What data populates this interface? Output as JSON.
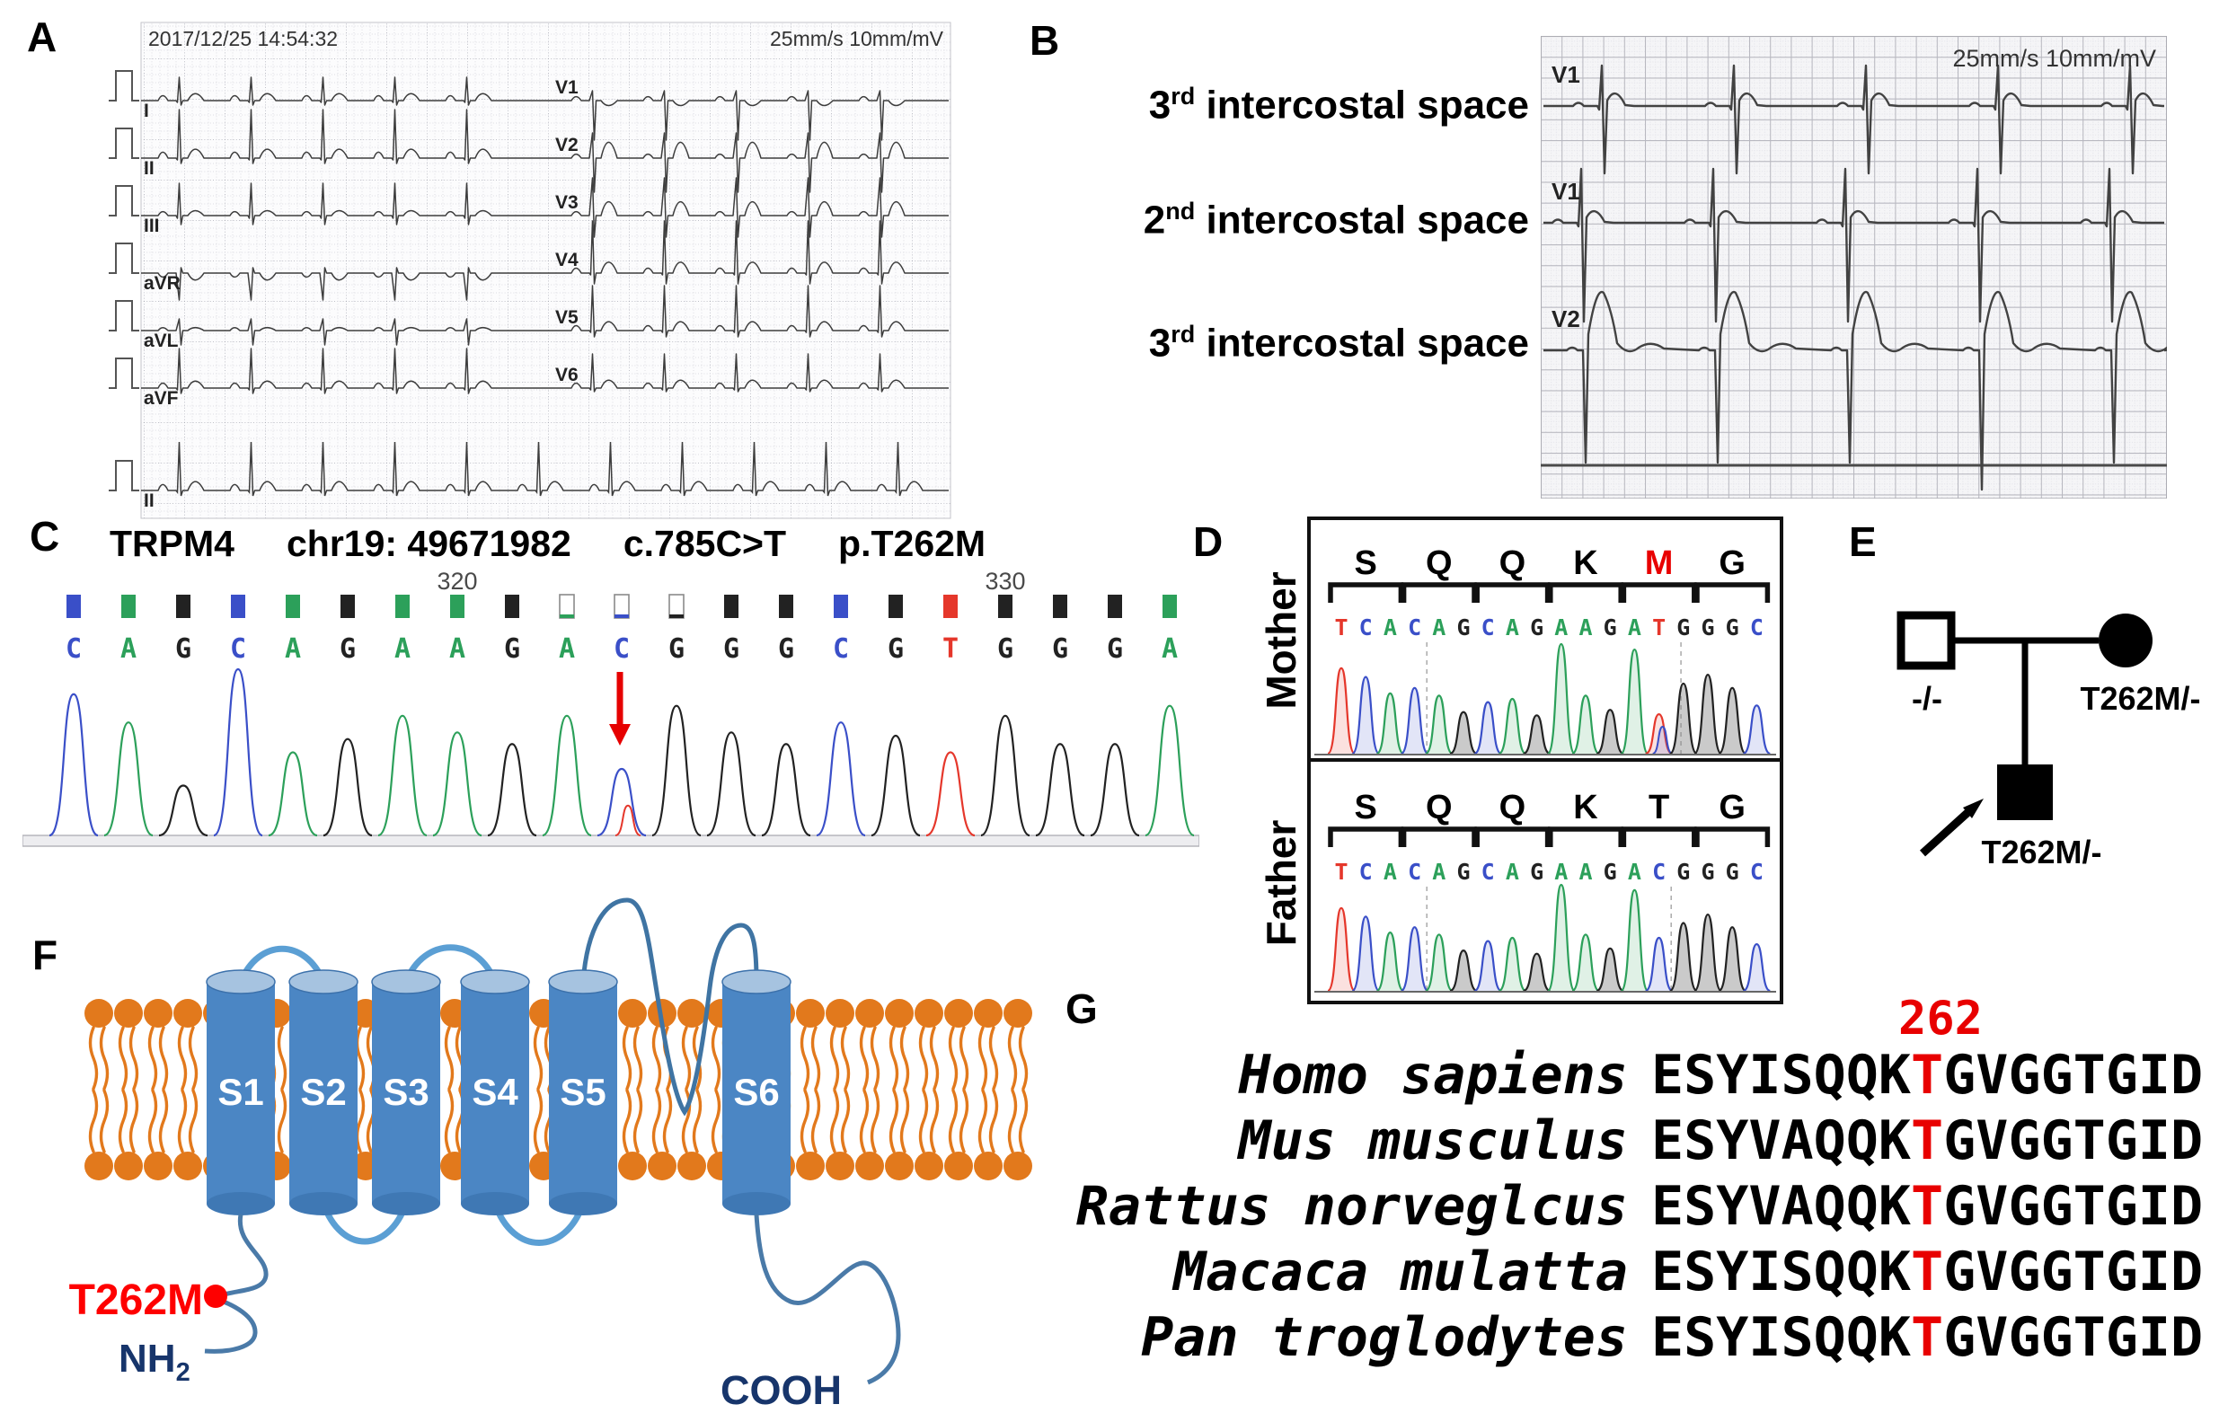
{
  "colors": {
    "base_A": "#2ca05a",
    "base_C": "#3a4fc8",
    "base_G": "#222222",
    "base_T": "#e5372b",
    "accent_red": "#fe0000",
    "lipid_orange": "#e2791c",
    "cylinder_blue": "#4b86c4",
    "loop_light": "#5b9fd4",
    "loop_dark": "#3f74a3",
    "navy": "#17356b"
  },
  "panel_a": {
    "label": "A",
    "timestamp": "2017/12/25 14:54:32",
    "calibration": "25mm/s 10mm/mV",
    "limb_leads": [
      "I",
      "II",
      "III",
      "aVR",
      "aVL",
      "aVF"
    ],
    "chest_leads": [
      "V1",
      "V2",
      "V3",
      "V4",
      "V5",
      "V6"
    ],
    "rhythm_lead": "II"
  },
  "panel_b": {
    "label": "B",
    "calibration": "25mm/s 10mm/mV",
    "rows": [
      {
        "ordinal": "3",
        "suffix": "rd",
        "text": " intercostal space",
        "lead": "V1"
      },
      {
        "ordinal": "2",
        "suffix": "nd",
        "text": " intercostal space",
        "lead": "V1"
      },
      {
        "ordinal": "3",
        "suffix": "rd",
        "text": " intercostal space",
        "lead": "V2"
      }
    ]
  },
  "panel_c": {
    "label": "C",
    "gene": "TRPM4",
    "locus": "chr19: 49671982",
    "cdna": "c.785C>T",
    "protein": "p.T262M",
    "sequence": "CAGCAGAAGACGGGCGTGGGA",
    "low_quality_indices": [
      9,
      10,
      11
    ],
    "position_marks": [
      {
        "text": "320",
        "index": 7
      },
      {
        "text": "330",
        "index": 17
      }
    ],
    "peak_heights": [
      0.85,
      0.68,
      0.3,
      1.0,
      0.5,
      0.58,
      0.72,
      0.62,
      0.55,
      0.72,
      0.4,
      0.78,
      0.62,
      0.55,
      0.68,
      0.6,
      0.5,
      0.72,
      0.55,
      0.55,
      0.78
    ],
    "het": {
      "index": 10,
      "minor_base": "T",
      "minor_height": 0.18
    },
    "arrow_index": 10
  },
  "panel_d": {
    "label": "D",
    "rows": [
      {
        "who": "Mother",
        "amino_acids": [
          "S",
          "Q",
          "Q",
          "K",
          "M",
          "G"
        ],
        "highlight_aa_index": 4,
        "sequence": "TCACAGCAGAAGATGGGC",
        "peak_heights": [
          0.78,
          0.7,
          0.55,
          0.6,
          0.53,
          0.38,
          0.47,
          0.5,
          0.35,
          1.0,
          0.53,
          0.4,
          0.95,
          0.36,
          0.64,
          0.72,
          0.6,
          0.44
        ],
        "het_index": 13,
        "het_minor_base": "C",
        "dashed_marks": [
          3.5,
          13.9
        ]
      },
      {
        "who": "Father",
        "amino_acids": [
          "S",
          "Q",
          "Q",
          "K",
          "T",
          "G"
        ],
        "highlight_aa_index": -1,
        "sequence": "TCACAGCAGAAGACGGGC",
        "peak_heights": [
          0.78,
          0.7,
          0.55,
          0.6,
          0.53,
          0.38,
          0.47,
          0.5,
          0.35,
          1.0,
          0.53,
          0.4,
          0.95,
          0.5,
          0.64,
          0.72,
          0.6,
          0.44
        ],
        "het_index": -1,
        "het_minor_base": "",
        "dashed_marks": [
          3.5,
          13.5
        ]
      }
    ]
  },
  "panel_e": {
    "label": "E",
    "father_genotype": "-/-",
    "mother_genotype": "T262M/-",
    "proband_genotype": "T262M/-"
  },
  "panel_f": {
    "label": "F",
    "segments": [
      "S1",
      "S2",
      "S3",
      "S4",
      "S5",
      "S6"
    ],
    "mutation": "T262M",
    "n_term": "NH",
    "n_term_sub": "2",
    "c_term": "COOH"
  },
  "panel_g": {
    "label": "G",
    "position_label": "262",
    "red_column": 8,
    "rows": [
      {
        "species": "Homo sapiens",
        "sequence": "ESYISQQKTGVGGTGID"
      },
      {
        "species": "Mus musculus",
        "sequence": "ESYVAQQKTGVGGTGID"
      },
      {
        "species": "Rattus norveglcus",
        "sequence": "ESYVAQQKTGVGGTGID"
      },
      {
        "species": "Macaca mulatta",
        "sequence": "ESYISQQKTGVGGTGID"
      },
      {
        "species": "Pan troglodytes",
        "sequence": "ESYISQQKTGVGGTGID"
      }
    ]
  }
}
